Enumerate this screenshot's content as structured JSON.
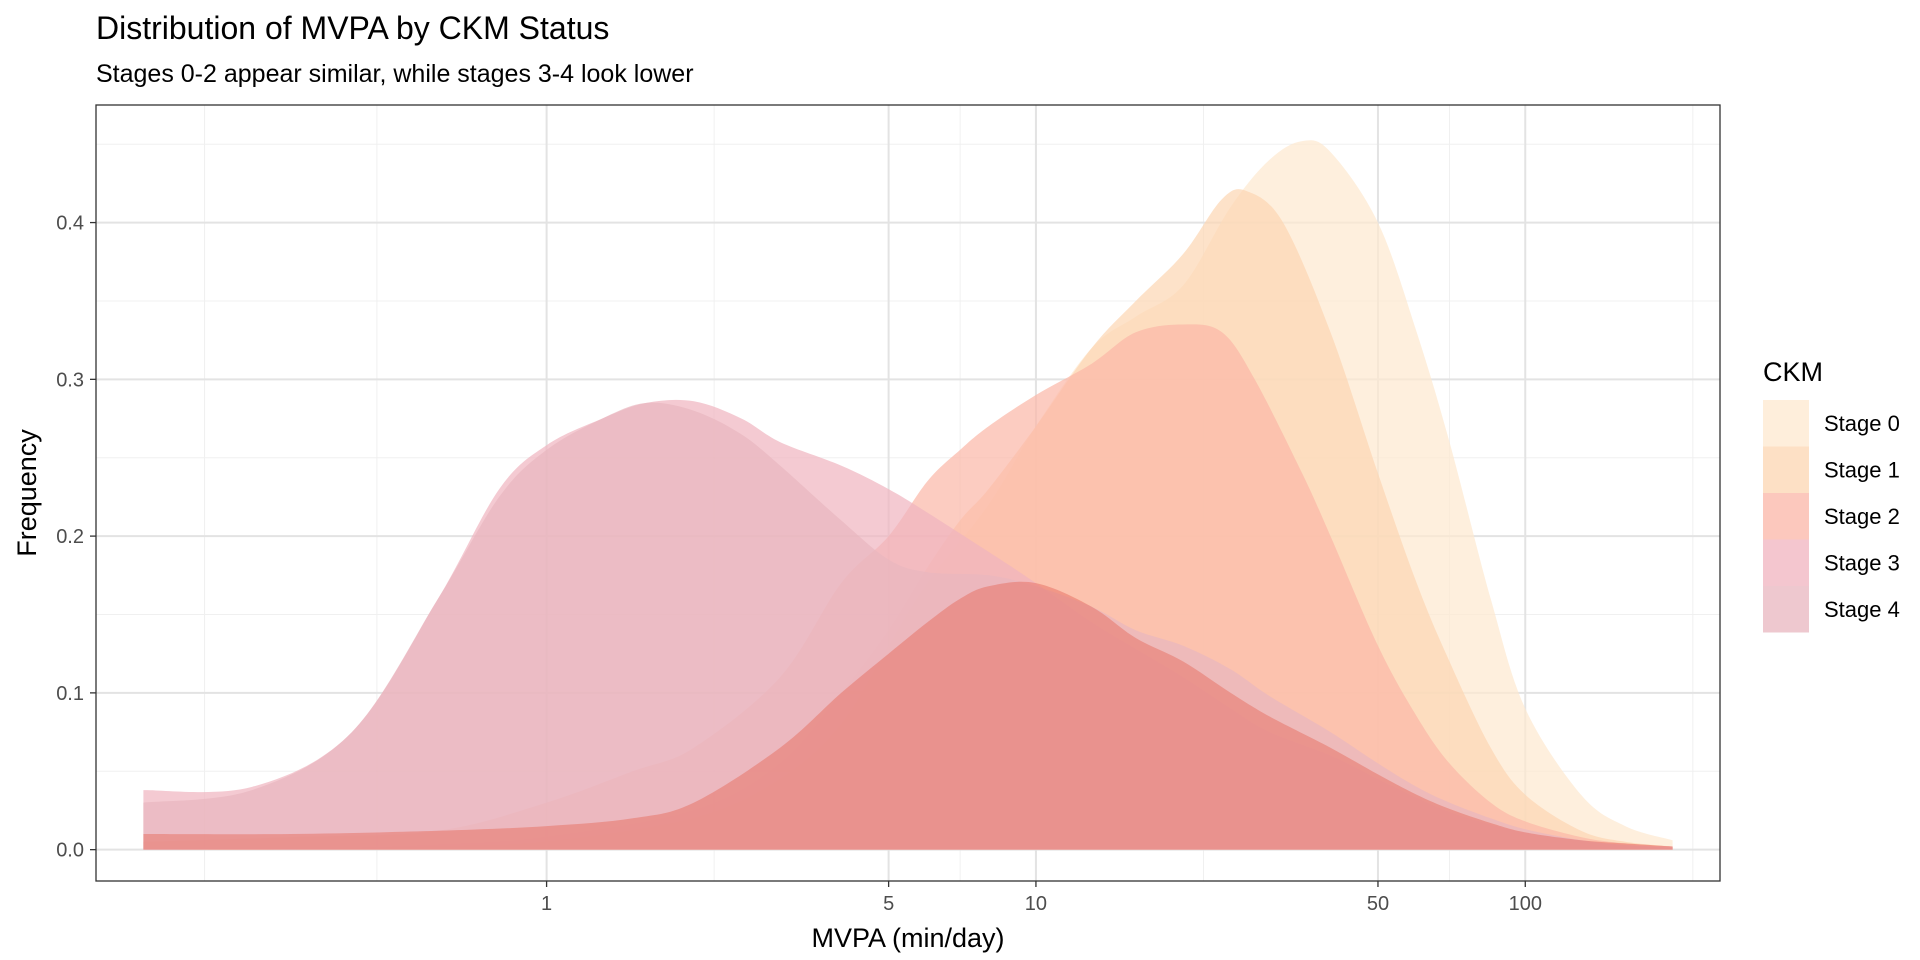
{
  "chart_data": {
    "type": "area",
    "title": "Distribution of MVPA by CKM Status",
    "subtitle": "Stages 0-2 appear similar, while stages 3-4 look lower",
    "xlabel": "MVPA (min/day)",
    "ylabel": "Frequency",
    "x_scale": "log10",
    "xlim": [
      0.12,
      250
    ],
    "ylim": [
      -0.02,
      0.475
    ],
    "x_ticks": [
      1,
      5,
      10,
      50,
      100
    ],
    "x_tick_labels": [
      "1",
      "5",
      "10",
      "50",
      "100"
    ],
    "x_minor_gridlines": [
      0.2,
      0.45,
      2.2,
      7,
      22,
      70,
      220
    ],
    "y_ticks": [
      0.0,
      0.1,
      0.2,
      0.3,
      0.4
    ],
    "y_tick_labels": [
      "0.0",
      "0.1",
      "0.2",
      "0.3",
      "0.4"
    ],
    "y_minor_gridlines": [
      0.05,
      0.15,
      0.25,
      0.35,
      0.45
    ],
    "grid": true,
    "legend": {
      "title": "CKM",
      "position": "right"
    },
    "series": [
      {
        "name": "Stage 0",
        "color": "#fde8cf",
        "points": [
          [
            0.15,
            0.0
          ],
          [
            0.3,
            0.0
          ],
          [
            0.6,
            0.002
          ],
          [
            1,
            0.005
          ],
          [
            2,
            0.02
          ],
          [
            3,
            0.045
          ],
          [
            4,
            0.08
          ],
          [
            5,
            0.13
          ],
          [
            6,
            0.17
          ],
          [
            8,
            0.22
          ],
          [
            10,
            0.27
          ],
          [
            13,
            0.32
          ],
          [
            16,
            0.34
          ],
          [
            20,
            0.36
          ],
          [
            25,
            0.41
          ],
          [
            30,
            0.44
          ],
          [
            35,
            0.452
          ],
          [
            40,
            0.445
          ],
          [
            50,
            0.4
          ],
          [
            60,
            0.33
          ],
          [
            70,
            0.26
          ],
          [
            85,
            0.16
          ],
          [
            100,
            0.09
          ],
          [
            130,
            0.035
          ],
          [
            160,
            0.015
          ],
          [
            200,
            0.006
          ]
        ]
      },
      {
        "name": "Stage 1",
        "color": "#fcd5b2",
        "points": [
          [
            0.15,
            0.0
          ],
          [
            0.3,
            0.0
          ],
          [
            0.6,
            0.003
          ],
          [
            1,
            0.008
          ],
          [
            2,
            0.025
          ],
          [
            3,
            0.055
          ],
          [
            4,
            0.1
          ],
          [
            5,
            0.14
          ],
          [
            6,
            0.18
          ],
          [
            7,
            0.21
          ],
          [
            8,
            0.23
          ],
          [
            10,
            0.27
          ],
          [
            13,
            0.32
          ],
          [
            16,
            0.35
          ],
          [
            20,
            0.38
          ],
          [
            24,
            0.415
          ],
          [
            27,
            0.42
          ],
          [
            32,
            0.4
          ],
          [
            40,
            0.33
          ],
          [
            50,
            0.24
          ],
          [
            60,
            0.17
          ],
          [
            70,
            0.12
          ],
          [
            85,
            0.065
          ],
          [
            100,
            0.035
          ],
          [
            130,
            0.012
          ],
          [
            160,
            0.005
          ],
          [
            200,
            0.002
          ]
        ]
      },
      {
        "name": "Stage 2",
        "color": "#fbb6a7",
        "points": [
          [
            0.15,
            0.005
          ],
          [
            0.3,
            0.008
          ],
          [
            0.6,
            0.012
          ],
          [
            1,
            0.03
          ],
          [
            1.5,
            0.05
          ],
          [
            2,
            0.065
          ],
          [
            3,
            0.11
          ],
          [
            4,
            0.17
          ],
          [
            5,
            0.2
          ],
          [
            6,
            0.235
          ],
          [
            7,
            0.255
          ],
          [
            8,
            0.27
          ],
          [
            10,
            0.29
          ],
          [
            13,
            0.31
          ],
          [
            16,
            0.33
          ],
          [
            20,
            0.335
          ],
          [
            24,
            0.33
          ],
          [
            28,
            0.3
          ],
          [
            35,
            0.24
          ],
          [
            40,
            0.2
          ],
          [
            50,
            0.13
          ],
          [
            60,
            0.085
          ],
          [
            70,
            0.055
          ],
          [
            85,
            0.03
          ],
          [
            100,
            0.018
          ],
          [
            130,
            0.008
          ],
          [
            160,
            0.004
          ],
          [
            200,
            0.002
          ]
        ]
      },
      {
        "name": "Stage 3",
        "color": "#f0b3bf",
        "points": [
          [
            0.15,
            0.038
          ],
          [
            0.25,
            0.04
          ],
          [
            0.4,
            0.075
          ],
          [
            0.6,
            0.16
          ],
          [
            0.8,
            0.23
          ],
          [
            1,
            0.258
          ],
          [
            1.3,
            0.275
          ],
          [
            1.6,
            0.285
          ],
          [
            2,
            0.286
          ],
          [
            2.5,
            0.275
          ],
          [
            3,
            0.26
          ],
          [
            4,
            0.245
          ],
          [
            5,
            0.23
          ],
          [
            6,
            0.215
          ],
          [
            8,
            0.19
          ],
          [
            10,
            0.17
          ],
          [
            13,
            0.145
          ],
          [
            16,
            0.128
          ],
          [
            20,
            0.11
          ],
          [
            25,
            0.09
          ],
          [
            30,
            0.075
          ],
          [
            40,
            0.06
          ],
          [
            50,
            0.045
          ],
          [
            60,
            0.033
          ],
          [
            70,
            0.024
          ],
          [
            85,
            0.016
          ],
          [
            100,
            0.011
          ],
          [
            130,
            0.006
          ],
          [
            160,
            0.003
          ],
          [
            200,
            0.002
          ]
        ]
      },
      {
        "name": "Stage 4",
        "color": "#e8b6bf",
        "points": [
          [
            0.15,
            0.03
          ],
          [
            0.25,
            0.038
          ],
          [
            0.4,
            0.075
          ],
          [
            0.6,
            0.16
          ],
          [
            0.8,
            0.225
          ],
          [
            1,
            0.255
          ],
          [
            1.3,
            0.275
          ],
          [
            1.6,
            0.285
          ],
          [
            2,
            0.28
          ],
          [
            2.5,
            0.265
          ],
          [
            3,
            0.245
          ],
          [
            4,
            0.21
          ],
          [
            5,
            0.185
          ],
          [
            6,
            0.177
          ],
          [
            8,
            0.175
          ],
          [
            10,
            0.168
          ],
          [
            13,
            0.155
          ],
          [
            16,
            0.14
          ],
          [
            20,
            0.13
          ],
          [
            25,
            0.115
          ],
          [
            30,
            0.098
          ],
          [
            40,
            0.075
          ],
          [
            50,
            0.055
          ],
          [
            60,
            0.04
          ],
          [
            70,
            0.03
          ],
          [
            85,
            0.02
          ],
          [
            100,
            0.013
          ],
          [
            130,
            0.006
          ],
          [
            160,
            0.003
          ],
          [
            200,
            0.001
          ]
        ]
      },
      {
        "name": "",
        "color": "#e87468",
        "points": [
          [
            0.15,
            0.01
          ],
          [
            0.3,
            0.01
          ],
          [
            0.6,
            0.012
          ],
          [
            1,
            0.015
          ],
          [
            1.5,
            0.02
          ],
          [
            2,
            0.03
          ],
          [
            3,
            0.065
          ],
          [
            4,
            0.1
          ],
          [
            5,
            0.125
          ],
          [
            6,
            0.145
          ],
          [
            7,
            0.16
          ],
          [
            8,
            0.168
          ],
          [
            10,
            0.17
          ],
          [
            13,
            0.155
          ],
          [
            16,
            0.135
          ],
          [
            20,
            0.12
          ],
          [
            25,
            0.1
          ],
          [
            30,
            0.085
          ],
          [
            40,
            0.065
          ],
          [
            50,
            0.048
          ],
          [
            60,
            0.035
          ],
          [
            70,
            0.026
          ],
          [
            85,
            0.017
          ],
          [
            100,
            0.011
          ],
          [
            130,
            0.006
          ],
          [
            160,
            0.004
          ],
          [
            200,
            0.002
          ]
        ]
      }
    ]
  }
}
